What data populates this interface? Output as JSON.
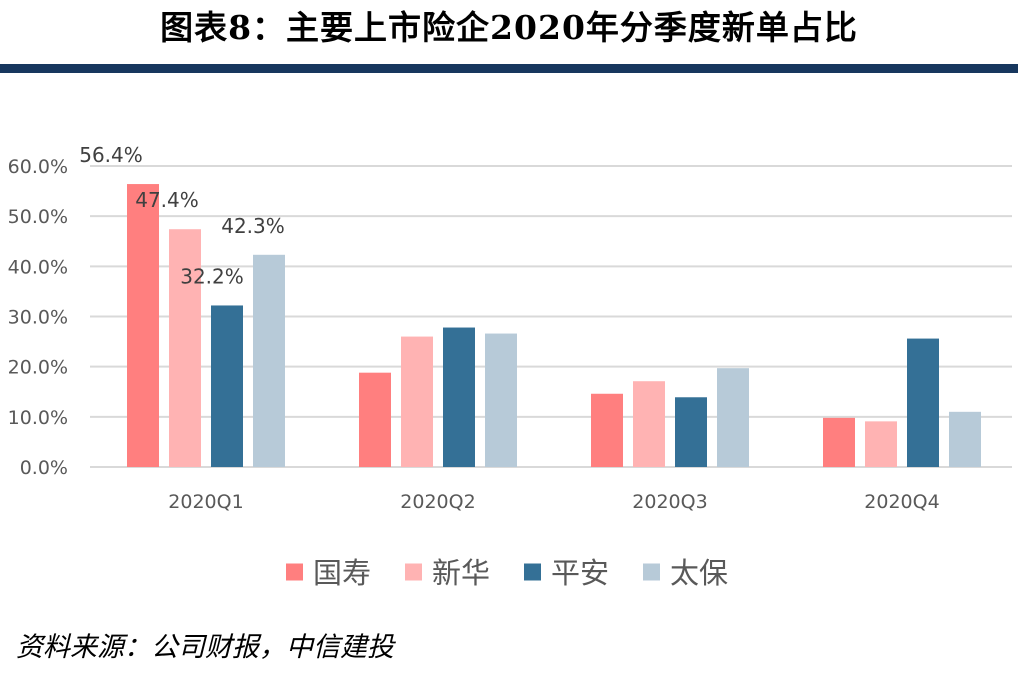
{
  "page": {
    "title": "图表8：主要上市险企2020年分季度新单占比",
    "source": "资料来源：公司财报，中信建投"
  },
  "chart_data": {
    "type": "bar",
    "title": "图表8：主要上市险企2020年分季度新单占比",
    "xlabel": "",
    "ylabel": "",
    "categories": [
      "2020Q1",
      "2020Q2",
      "2020Q3",
      "2020Q4"
    ],
    "series": [
      {
        "name": "国寿",
        "color": "#ff7f7f",
        "values": [
          56.4,
          18.8,
          14.6,
          9.8
        ],
        "labels": [
          "56.4%",
          null,
          null,
          null
        ]
      },
      {
        "name": "新华",
        "color": "#ffb3b3",
        "values": [
          47.4,
          26.0,
          17.1,
          9.1
        ],
        "labels": [
          "47.4%",
          null,
          null,
          null
        ]
      },
      {
        "name": "平安",
        "color": "#347096",
        "values": [
          32.2,
          27.8,
          13.9,
          25.6
        ],
        "labels": [
          "32.2%",
          null,
          null,
          null
        ]
      },
      {
        "name": "太保",
        "color": "#b7cad8",
        "values": [
          42.3,
          26.6,
          19.7,
          11.0
        ],
        "labels": [
          "42.3%",
          null,
          null,
          null
        ]
      }
    ],
    "ylim": [
      0,
      60
    ],
    "yticks": [
      0,
      10,
      20,
      30,
      40,
      50,
      60
    ],
    "ytick_labels": [
      "0.0%",
      "10.0%",
      "20.0%",
      "30.0%",
      "40.0%",
      "50.0%",
      "60.0%"
    ],
    "grid": true,
    "legend_position": "bottom-center"
  }
}
